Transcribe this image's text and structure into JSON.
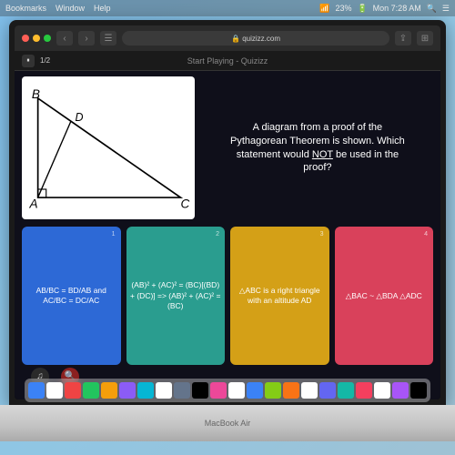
{
  "menubar": {
    "items": [
      "Bookmarks",
      "Window",
      "Help"
    ],
    "battery": "23%",
    "clock": "Mon 7:28 AM"
  },
  "browser": {
    "url": "quizizz.com",
    "lock": "🔒"
  },
  "site": {
    "banner": "Start Playing - Quizizz",
    "progress": "1/2",
    "pause": "⏸"
  },
  "question": {
    "line1": "A diagram from a proof of the",
    "line2": "Pythagorean Theorem is shown. Which",
    "line3_a": "statement would ",
    "line3_not": "NOT",
    "line3_b": " be used in the",
    "line4": "proof?"
  },
  "diagram": {
    "labels": {
      "B": "B",
      "D": "D",
      "A": "A",
      "C": "C"
    }
  },
  "answers": [
    {
      "num": "1",
      "color": "#2d69d6",
      "text": "AB/BC = BD/AB and AC/BC = DC/AC"
    },
    {
      "num": "2",
      "color": "#2a9d8f",
      "text": "(AB)² + (AC)² = (BC)[(BD) + (DC)] => (AB)² + (AC)² = (BC)"
    },
    {
      "num": "3",
      "color": "#d4a017",
      "text": "△ABC is a right triangle with an altitude AD"
    },
    {
      "num": "4",
      "color": "#d9415b",
      "text": "△BAC ~ △BDA △ADC"
    }
  ],
  "controls": {
    "music": {
      "icon": "♫",
      "label": "Music off"
    },
    "zoom": {
      "icon": "🔍",
      "label": "Zoom in"
    }
  },
  "laptop": {
    "brand": "MacBook Air"
  },
  "dock_colors": [
    "#3b82f6",
    "#fff",
    "#ef4444",
    "#22c55e",
    "#f59e0b",
    "#8b5cf6",
    "#06b6d4",
    "#fff",
    "#64748b",
    "#000",
    "#ec4899",
    "#fff",
    "#3b82f6",
    "#84cc16",
    "#f97316",
    "#fff",
    "#6366f1",
    "#14b8a6",
    "#f43f5e",
    "#fff",
    "#a855f7",
    "#000"
  ]
}
